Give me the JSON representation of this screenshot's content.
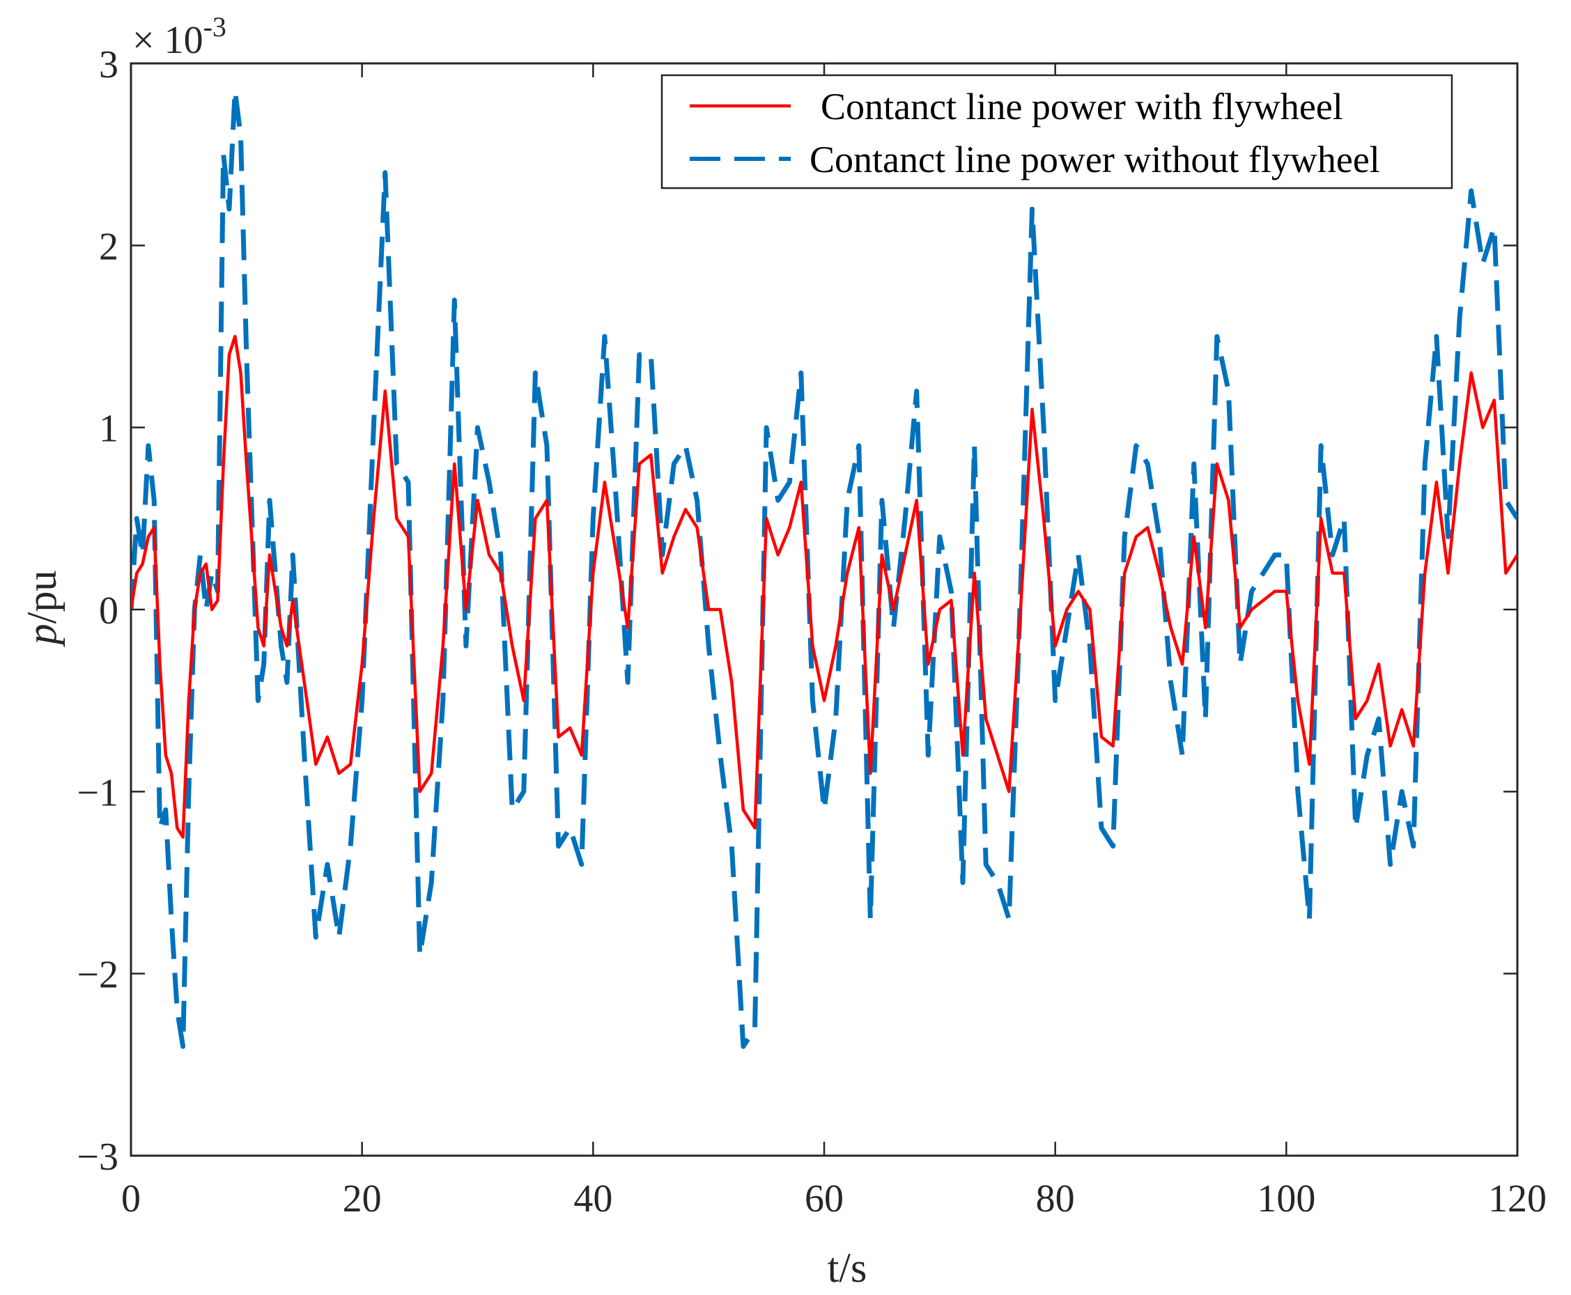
{
  "chart_data": {
    "type": "line",
    "title": "",
    "xlabel": "t/s",
    "ylabel_var": "p",
    "ylabel_unit": "/pu",
    "exponent_label": "× 10",
    "exponent_power": "-3",
    "xlim": [
      0,
      120
    ],
    "ylim": [
      -3,
      3
    ],
    "xticks": [
      0,
      20,
      40,
      60,
      80,
      100,
      120
    ],
    "yticks": [
      3,
      2,
      1,
      0,
      -1,
      -2,
      -3
    ],
    "yticklabels": [
      "3",
      "2",
      "1",
      "0",
      "−1",
      "−2",
      "−3"
    ],
    "grid": false,
    "legend_position": "top-right",
    "series": [
      {
        "name": "Contanct line power with flywheel",
        "style": "solid",
        "color": "#ff0000",
        "x": [
          0,
          0.5,
          1,
          1.5,
          2,
          2.5,
          3,
          3.5,
          4,
          4.5,
          5,
          5.5,
          6,
          6.5,
          7,
          7.5,
          8,
          8.5,
          9,
          9.5,
          10,
          11,
          11.5,
          12,
          13,
          13.5,
          14,
          15,
          16,
          17,
          18,
          19,
          20,
          21,
          22,
          23,
          24,
          25,
          26,
          27,
          28,
          29,
          30,
          31,
          32,
          33,
          34,
          35,
          36,
          37,
          38,
          39,
          40,
          41,
          42,
          43,
          44,
          45,
          46,
          47,
          48,
          49,
          50,
          51,
          52,
          53,
          54,
          55,
          56,
          57,
          58,
          59,
          60,
          61,
          62,
          63,
          64,
          65,
          66,
          67,
          68,
          69,
          70,
          71,
          72,
          73,
          74,
          75,
          76,
          77,
          78,
          79,
          80,
          81,
          82,
          83,
          84,
          85,
          86,
          87,
          88,
          89,
          90,
          91,
          92,
          93,
          94,
          95,
          96,
          97,
          98,
          99,
          100,
          101,
          102,
          103,
          104,
          105,
          106,
          107,
          108,
          109,
          110,
          111,
          112,
          113,
          114,
          115,
          116,
          117,
          118,
          119,
          120
        ],
        "values": [
          0.0,
          0.2,
          0.25,
          0.4,
          0.45,
          -0.3,
          -0.8,
          -0.9,
          -1.2,
          -1.25,
          -0.5,
          0.0,
          0.2,
          0.25,
          0.0,
          0.05,
          0.8,
          1.4,
          1.5,
          1.3,
          0.8,
          -0.1,
          -0.2,
          0.3,
          -0.1,
          -0.2,
          0.05,
          -0.4,
          -0.85,
          -0.7,
          -0.9,
          -0.85,
          -0.3,
          0.5,
          1.2,
          0.5,
          0.4,
          -1.0,
          -0.9,
          -0.2,
          0.8,
          0.0,
          0.6,
          0.3,
          0.2,
          -0.2,
          -0.5,
          0.5,
          0.6,
          -0.7,
          -0.65,
          -0.8,
          0.2,
          0.7,
          0.3,
          -0.1,
          0.8,
          0.85,
          0.2,
          0.4,
          0.55,
          0.45,
          0.0,
          0.0,
          -0.4,
          -1.1,
          -1.2,
          0.5,
          0.3,
          0.45,
          0.7,
          -0.2,
          -0.5,
          -0.2,
          0.2,
          0.45,
          -0.9,
          0.3,
          0.0,
          0.3,
          0.6,
          -0.3,
          0.0,
          0.05,
          -0.8,
          0.2,
          -0.6,
          -0.8,
          -1.0,
          0.0,
          1.1,
          0.5,
          -0.2,
          0.0,
          0.1,
          0.0,
          -0.7,
          -0.75,
          0.2,
          0.4,
          0.45,
          0.2,
          -0.1,
          -0.3,
          0.4,
          -0.1,
          0.8,
          0.6,
          -0.1,
          0.0,
          0.05,
          0.1,
          0.1,
          -0.5,
          -0.85,
          0.5,
          0.2,
          0.2,
          -0.6,
          -0.5,
          -0.3,
          -0.75,
          -0.55,
          -0.75,
          0.2,
          0.7,
          0.2,
          0.8,
          1.3,
          1.0,
          1.15,
          0.2,
          0.3
        ]
      },
      {
        "name": "Contanct line power without flywheel",
        "style": "dashed",
        "color": "#0072bd",
        "x": [
          0,
          0.5,
          1,
          1.5,
          2,
          2.5,
          3,
          3.5,
          4,
          4.5,
          5,
          5.5,
          6,
          6.5,
          7,
          7.5,
          8,
          8.5,
          9,
          9.5,
          10,
          11,
          11.5,
          12,
          13,
          13.5,
          14,
          15,
          16,
          17,
          18,
          19,
          20,
          21,
          22,
          23,
          24,
          25,
          26,
          27,
          28,
          29,
          30,
          31,
          32,
          33,
          34,
          35,
          36,
          37,
          38,
          39,
          40,
          41,
          42,
          43,
          44,
          45,
          46,
          47,
          48,
          49,
          50,
          51,
          52,
          53,
          54,
          55,
          56,
          57,
          58,
          59,
          60,
          61,
          62,
          63,
          64,
          65,
          66,
          67,
          68,
          69,
          70,
          71,
          72,
          73,
          74,
          75,
          76,
          77,
          78,
          79,
          80,
          81,
          82,
          83,
          84,
          85,
          86,
          87,
          88,
          89,
          90,
          91,
          92,
          93,
          94,
          95,
          96,
          97,
          98,
          99,
          100,
          101,
          102,
          103,
          104,
          105,
          106,
          107,
          108,
          109,
          110,
          111,
          112,
          113,
          114,
          115,
          116,
          117,
          118,
          119,
          120
        ],
        "values": [
          0.0,
          0.5,
          0.3,
          0.9,
          0.6,
          -1.2,
          -1.1,
          -1.7,
          -2.2,
          -2.4,
          -1.0,
          0.0,
          0.3,
          0.0,
          0.2,
          0.1,
          2.5,
          2.2,
          2.85,
          2.6,
          1.4,
          -0.5,
          -0.3,
          0.6,
          -0.2,
          -0.4,
          0.3,
          -0.8,
          -1.8,
          -1.4,
          -1.8,
          -1.3,
          -0.5,
          1.0,
          2.4,
          0.8,
          0.7,
          -1.9,
          -1.5,
          -0.5,
          1.7,
          -0.2,
          1.0,
          0.7,
          0.3,
          -1.1,
          -1.0,
          1.3,
          0.9,
          -1.3,
          -1.2,
          -1.4,
          0.5,
          1.5,
          0.6,
          -0.4,
          1.4,
          1.4,
          0.3,
          0.8,
          0.9,
          0.6,
          -0.2,
          -0.8,
          -1.3,
          -2.4,
          -2.3,
          1.0,
          0.6,
          0.7,
          1.3,
          -0.5,
          -1.1,
          -0.6,
          0.6,
          0.9,
          -1.7,
          0.6,
          -0.1,
          0.5,
          1.2,
          -0.8,
          0.4,
          0.1,
          -1.5,
          0.9,
          -1.4,
          -1.5,
          -1.7,
          0.1,
          2.2,
          1.0,
          -0.5,
          -0.1,
          0.3,
          -0.2,
          -1.2,
          -1.3,
          0.4,
          0.9,
          0.8,
          0.4,
          -0.4,
          -0.8,
          0.8,
          -0.6,
          1.5,
          1.2,
          -0.3,
          0.1,
          0.2,
          0.3,
          0.3,
          -1.0,
          -1.7,
          0.9,
          0.3,
          0.5,
          -1.2,
          -0.8,
          -0.6,
          -1.4,
          -1.0,
          -1.3,
          0.8,
          1.5,
          0.4,
          1.6,
          2.3,
          1.9,
          2.1,
          0.6,
          0.5
        ]
      }
    ]
  }
}
